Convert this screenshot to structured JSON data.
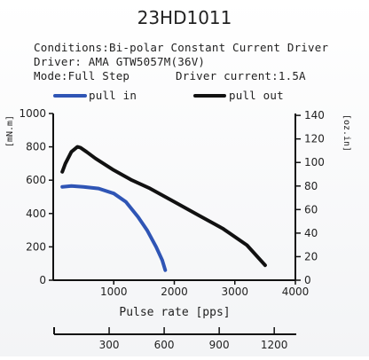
{
  "chart_data": {
    "type": "line",
    "title": "23HD1011",
    "conditions": [
      "Conditions:Bi-polar Constant Current Driver",
      "Driver: AMA GTW5057M(36V)",
      "Mode:Full Step"
    ],
    "driver_current": "Driver current:1.5A",
    "xlabel": "Pulse rate [pps]",
    "xlim": [
      0,
      4000
    ],
    "x_ticks": [
      1000,
      2000,
      3000,
      4000
    ],
    "ylabel_left": "[mN.m]",
    "ylim_left": [
      0,
      1000
    ],
    "y_ticks_left": [
      0,
      200,
      400,
      600,
      800,
      1000
    ],
    "ylabel_right": "[oz.in]",
    "ylim_right": [
      0,
      141.6
    ],
    "y_ticks_right": [
      0,
      20,
      40,
      60,
      80,
      100,
      120,
      140
    ],
    "secondary_x_ticks": [
      300,
      600,
      900,
      1200
    ],
    "secondary_xlim": [
      0,
      1320
    ],
    "legend_position": "top",
    "grid": false,
    "series": [
      {
        "name": "pull in",
        "color": "#2f55b5",
        "x": [
          150,
          300,
          500,
          750,
          1000,
          1200,
          1400,
          1550,
          1700,
          1800,
          1850
        ],
        "y": [
          560,
          565,
          560,
          550,
          520,
          470,
          380,
          300,
          200,
          120,
          60
        ]
      },
      {
        "name": "pull out",
        "color": "#111111",
        "x": [
          150,
          200,
          300,
          400,
          450,
          550,
          700,
          1000,
          1300,
          1600,
          2000,
          2400,
          2800,
          3200,
          3500
        ],
        "y": [
          650,
          700,
          770,
          800,
          795,
          770,
          730,
          660,
          600,
          550,
          470,
          390,
          310,
          210,
          90
        ]
      }
    ]
  }
}
